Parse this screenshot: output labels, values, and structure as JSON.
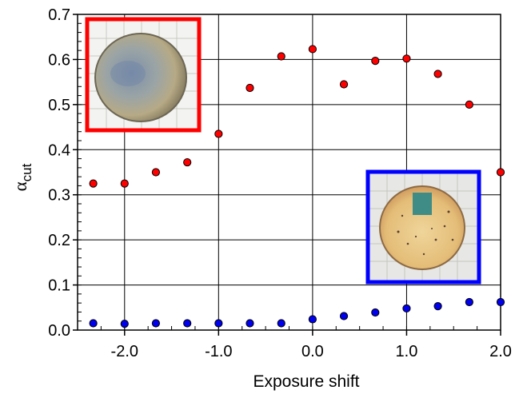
{
  "chart_data": {
    "type": "scatter",
    "title": "",
    "xlabel": "Exposure shift",
    "ylabel": {
      "base": "α",
      "sub": "cut"
    },
    "xlim": [
      -2.5,
      2.0
    ],
    "ylim": [
      0.0,
      0.7
    ],
    "x_ticks": [
      -2.0,
      -1.0,
      0.0,
      1.0,
      2.0
    ],
    "x_tick_labels": [
      "-2.0",
      "-1.0",
      "0.0",
      "1.0",
      "2.0"
    ],
    "y_ticks": [
      0.0,
      0.1,
      0.2,
      0.3,
      0.4,
      0.5,
      0.6,
      0.7
    ],
    "y_tick_labels": [
      "0.0",
      "0.1",
      "0.2",
      "0.3",
      "0.4",
      "0.5",
      "0.6",
      "0.7"
    ],
    "grid": true,
    "series": [
      {
        "color": "#ff0000",
        "points": [
          {
            "x": -2.333,
            "y": 0.325
          },
          {
            "x": -2.0,
            "y": 0.325
          },
          {
            "x": -1.667,
            "y": 0.35
          },
          {
            "x": -1.333,
            "y": 0.372
          },
          {
            "x": -1.0,
            "y": 0.435
          },
          {
            "x": -0.667,
            "y": 0.537
          },
          {
            "x": -0.333,
            "y": 0.607
          },
          {
            "x": 0.0,
            "y": 0.623
          },
          {
            "x": 0.333,
            "y": 0.545
          },
          {
            "x": 0.667,
            "y": 0.597
          },
          {
            "x": 1.0,
            "y": 0.602
          },
          {
            "x": 1.333,
            "y": 0.568
          },
          {
            "x": 1.667,
            "y": 0.5
          },
          {
            "x": 2.0,
            "y": 0.35
          }
        ]
      },
      {
        "color": "#0000ee",
        "points": [
          {
            "x": -2.333,
            "y": 0.015
          },
          {
            "x": -2.0,
            "y": 0.014
          },
          {
            "x": -1.667,
            "y": 0.015
          },
          {
            "x": -1.333,
            "y": 0.015
          },
          {
            "x": -1.0,
            "y": 0.015
          },
          {
            "x": -0.667,
            "y": 0.015
          },
          {
            "x": -0.333,
            "y": 0.015
          },
          {
            "x": 0.0,
            "y": 0.024
          },
          {
            "x": 0.333,
            "y": 0.031
          },
          {
            "x": 0.667,
            "y": 0.039
          },
          {
            "x": 1.0,
            "y": 0.048
          },
          {
            "x": 1.333,
            "y": 0.053
          },
          {
            "x": 1.667,
            "y": 0.062
          },
          {
            "x": 2.0,
            "y": 0.062
          }
        ]
      }
    ],
    "insets": [
      {
        "name": "red-framed-sample-photo",
        "frame_color": "#ff0000",
        "sample_color": "#9aa3a8"
      },
      {
        "name": "blue-framed-sample-photo",
        "frame_color": "#0000ff",
        "sample_color": "#e2c07a"
      }
    ]
  }
}
